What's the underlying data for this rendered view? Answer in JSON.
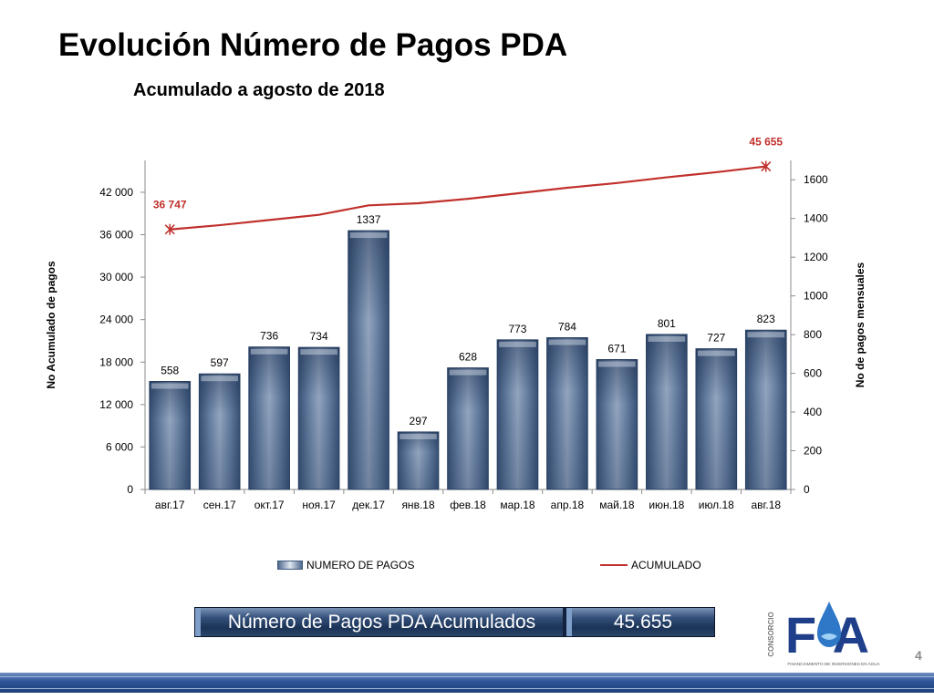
{
  "title": "Evolución Número de Pagos PDA",
  "subtitle": "Acumulado a agosto de 2018",
  "chart_data": {
    "type": "bar",
    "categories": [
      "авг.17",
      "сен.17",
      "окт.17",
      "ноя.17",
      "дек.17",
      "янв.18",
      "фев.18",
      "мар.18",
      "апр.18",
      "май.18",
      "июн.18",
      "июл.18",
      "авг.18"
    ],
    "series": [
      {
        "name": "NUMERO DE PAGOS",
        "type": "bar",
        "axis": "right",
        "values": [
          558,
          597,
          736,
          734,
          1337,
          297,
          628,
          773,
          784,
          671,
          801,
          727,
          823
        ],
        "color": "#3f5b82"
      },
      {
        "name": "ACUMULADO",
        "type": "line",
        "axis": "left",
        "values": [
          36747,
          37344,
          38080,
          38814,
          40151,
          40448,
          41076,
          41849,
          42633,
          43304,
          44105,
          44832,
          45655
        ],
        "color": "#c0302c"
      }
    ],
    "line_labels": [
      {
        "index": 0,
        "text": "36 747"
      },
      {
        "index": 12,
        "text": "45 655"
      }
    ],
    "ylabel_left": "No Acumulado de pagos",
    "ylabel_right": "No de pagos mensuales",
    "ylim_left": [
      0,
      46500
    ],
    "yticks_left": [
      0,
      6000,
      12000,
      18000,
      24000,
      30000,
      36000,
      42000
    ],
    "ytick_labels_left": [
      "0",
      "6 000",
      "12 000",
      "18 000",
      "24 000",
      "30 000",
      "36 000",
      "42 000"
    ],
    "ylim_right": [
      0,
      1700
    ],
    "yticks_right": [
      0,
      200,
      400,
      600,
      800,
      1000,
      1200,
      1400,
      1600
    ],
    "ytick_labels_right": [
      "0",
      "200",
      "400",
      "600",
      "800",
      "1000",
      "1200",
      "1400",
      "1600"
    ],
    "grid": false,
    "legend_position": "bottom"
  },
  "legend": {
    "bars_label": "NUMERO DE PAGOS",
    "line_label": "ACUMULADO"
  },
  "summary": {
    "label": "Número de Pagos PDA Acumulados",
    "value": "45.655"
  },
  "logo": {
    "side_text": "CONSORCIO",
    "letters": "FIA",
    "tagline": "FINANCIAMIENTO DE INVERSIONES EN AGUA"
  },
  "page_number": "4",
  "colors": {
    "bar": "#3f5b82",
    "line": "#c0302c",
    "footer": "#2f5597"
  }
}
